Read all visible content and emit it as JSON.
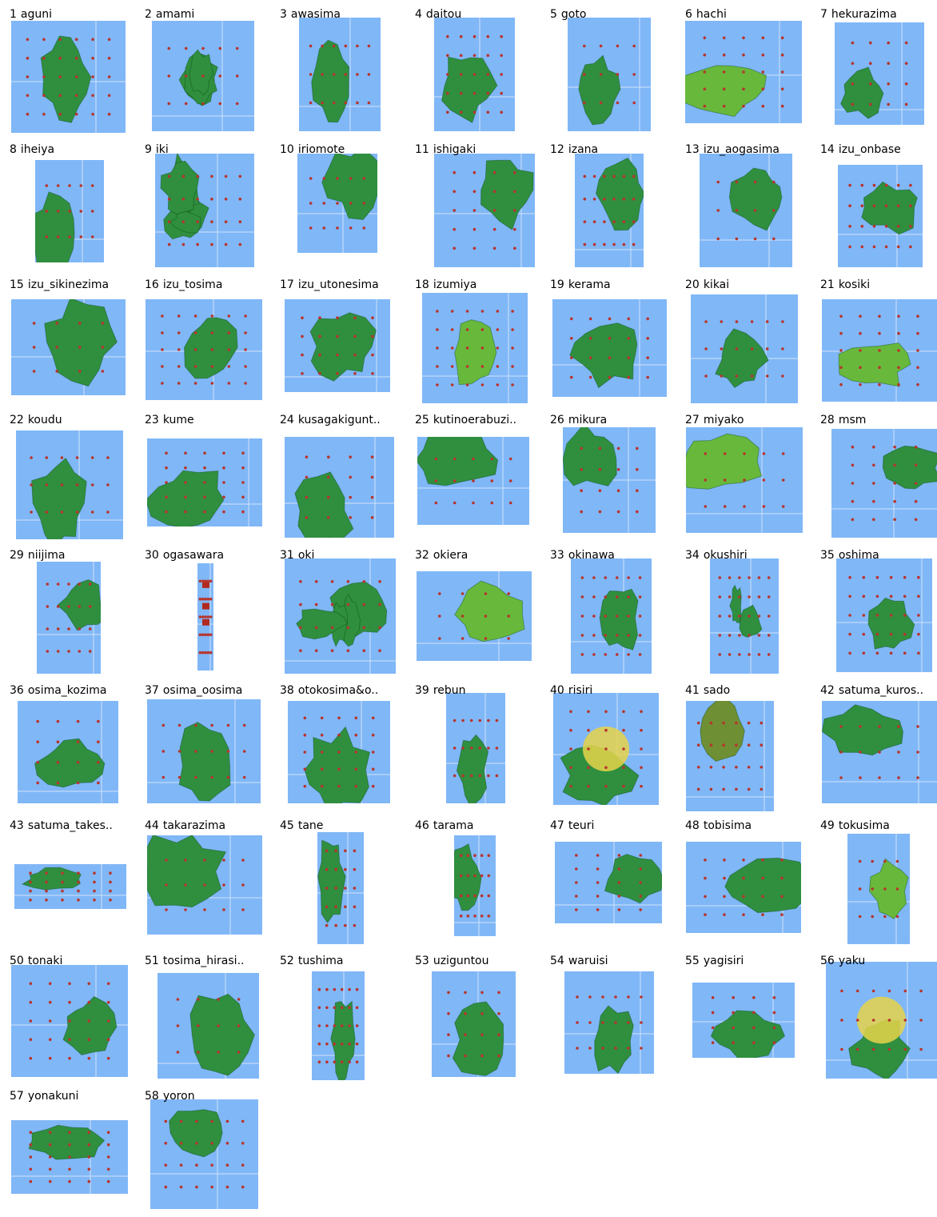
{
  "thumbnails": [
    {
      "number": "1",
      "name": "aguni",
      "terrain": "dark"
    },
    {
      "number": "2",
      "name": "amami",
      "terrain": "patchy"
    },
    {
      "number": "3",
      "name": "awasima",
      "terrain": "dark"
    },
    {
      "number": "4",
      "name": "daitou",
      "terrain": "dark"
    },
    {
      "number": "5",
      "name": "goto",
      "terrain": "patchy"
    },
    {
      "number": "6",
      "name": "hachi",
      "terrain": "bright"
    },
    {
      "number": "7",
      "name": "hekurazima",
      "terrain": "dark"
    },
    {
      "number": "8",
      "name": "iheiya",
      "terrain": "dark"
    },
    {
      "number": "9",
      "name": "iki",
      "terrain": "patchy"
    },
    {
      "number": "10",
      "name": "iriomote",
      "terrain": "patchy"
    },
    {
      "number": "11",
      "name": "ishigaki",
      "terrain": "dark"
    },
    {
      "number": "12",
      "name": "izana",
      "terrain": "dark"
    },
    {
      "number": "13",
      "name": "izu_aogasima",
      "terrain": "dark"
    },
    {
      "number": "14",
      "name": "izu_onbase",
      "terrain": "dark"
    },
    {
      "number": "15",
      "name": "izu_sikinezima",
      "terrain": "dark"
    },
    {
      "number": "16",
      "name": "izu_tosima",
      "terrain": "dark"
    },
    {
      "number": "17",
      "name": "izu_utonesima",
      "terrain": "dark"
    },
    {
      "number": "18",
      "name": "izumiya",
      "terrain": "bright"
    },
    {
      "number": "19",
      "name": "kerama",
      "terrain": "patchy"
    },
    {
      "number": "20",
      "name": "kikai",
      "terrain": "dark"
    },
    {
      "number": "21",
      "name": "kosiki",
      "terrain": "bright"
    },
    {
      "number": "22",
      "name": "koudu",
      "terrain": "dark"
    },
    {
      "number": "23",
      "name": "kume",
      "terrain": "dark"
    },
    {
      "number": "24",
      "name": "kusagakiguntou",
      "label": "kusagakigunt..",
      "terrain": "dark"
    },
    {
      "number": "25",
      "name": "kutinoerabuzima",
      "label": "kutinoerabuzi..",
      "terrain": "dark"
    },
    {
      "number": "26",
      "name": "mikura",
      "terrain": "dark"
    },
    {
      "number": "27",
      "name": "miyako",
      "terrain": "bright"
    },
    {
      "number": "28",
      "name": "msm",
      "terrain": "dark"
    },
    {
      "number": "29",
      "name": "niijima",
      "terrain": "dark"
    },
    {
      "number": "30",
      "name": "ogasawara",
      "terrain": "red"
    },
    {
      "number": "31",
      "name": "oki",
      "terrain": "patchy"
    },
    {
      "number": "32",
      "name": "okiera",
      "terrain": "bright"
    },
    {
      "number": "33",
      "name": "okinawa",
      "terrain": "patchy"
    },
    {
      "number": "34",
      "name": "okushiri",
      "terrain": "patchy"
    },
    {
      "number": "35",
      "name": "oshima",
      "terrain": "dark"
    },
    {
      "number": "36",
      "name": "osima_kozima",
      "terrain": "dark"
    },
    {
      "number": "37",
      "name": "osima_oosima",
      "terrain": "dark"
    },
    {
      "number": "38",
      "name": "otokosima&onnasima",
      "label": "otokosima&o..",
      "terrain": "dark"
    },
    {
      "number": "39",
      "name": "rebun",
      "terrain": "dark"
    },
    {
      "number": "40",
      "name": "risiri",
      "terrain": "peak"
    },
    {
      "number": "41",
      "name": "sado",
      "terrain": "olive"
    },
    {
      "number": "42",
      "name": "satuma_kurosima",
      "label": "satuma_kuros..",
      "terrain": "dark"
    },
    {
      "number": "43",
      "name": "satuma_takesima",
      "label": "satuma_takes..",
      "terrain": "dark"
    },
    {
      "number": "44",
      "name": "takarazima",
      "terrain": "dark"
    },
    {
      "number": "45",
      "name": "tane",
      "terrain": "dark"
    },
    {
      "number": "46",
      "name": "tarama",
      "terrain": "dark"
    },
    {
      "number": "47",
      "name": "teuri",
      "terrain": "dark"
    },
    {
      "number": "48",
      "name": "tobisima",
      "terrain": "dark"
    },
    {
      "number": "49",
      "name": "tokusima",
      "terrain": "bright"
    },
    {
      "number": "50",
      "name": "tonaki",
      "terrain": "dark"
    },
    {
      "number": "51",
      "name": "tosima_hirasima",
      "label": "tosima_hirasi..",
      "terrain": "dark"
    },
    {
      "number": "52",
      "name": "tushima",
      "terrain": "dark"
    },
    {
      "number": "53",
      "name": "uziguntou",
      "terrain": "dark"
    },
    {
      "number": "54",
      "name": "waruisi",
      "terrain": "dark"
    },
    {
      "number": "55",
      "name": "yagisiri",
      "terrain": "dark"
    },
    {
      "number": "56",
      "name": "yaku",
      "terrain": "peak"
    },
    {
      "number": "57",
      "name": "yonakuni",
      "terrain": "dark"
    },
    {
      "number": "58",
      "name": "yoron",
      "terrain": "dark"
    }
  ],
  "colors": {
    "sea": "#80b7f7",
    "grid_line": "#cfe3fb",
    "marker": "#b8342c",
    "land_dark": "#2f8f3f",
    "land_bright": "#68b83c",
    "land_olive": "#6f8f34",
    "land_peak": "#e6d34a",
    "land_red": "#b02a20"
  }
}
